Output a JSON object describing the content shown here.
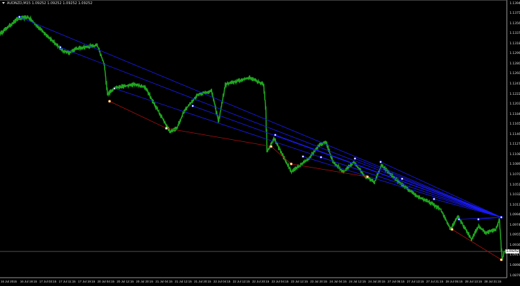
{
  "window": {
    "symbol": "AUDNZD,M15",
    "ohlc": [
      "1.09252",
      "1.09252",
      "1.09252",
      "1.09252"
    ]
  },
  "colors": {
    "background": "#000000",
    "price_line": "#1fa51f",
    "trend_upper": "#1a1aff",
    "trend_lower": "#b01010",
    "axis": "#c8c8c8",
    "current_price_line": "#808080"
  },
  "chart_data": {
    "type": "line",
    "title": "AUDNZD,M15",
    "ylim": [
      1.08795,
      1.1394
    ],
    "current_price": "1.09252",
    "y_ticks": [
      "1.13940",
      "1.13750",
      "1.13560",
      "1.13370",
      "1.13180",
      "1.12990",
      "1.12800",
      "1.12605",
      "1.12415",
      "1.12225",
      "1.12035",
      "1.11845",
      "1.11655",
      "1.11465",
      "1.11275",
      "1.11080",
      "1.10890",
      "1.10700",
      "1.10510",
      "1.10320",
      "1.10130",
      "1.09940",
      "1.09745",
      "1.09555",
      "1.09365",
      "1.09175",
      "1.08985",
      "1.08795"
    ],
    "x_ticks": [
      "16 Jul 2015",
      "16 Jul 19:15",
      "17 Jul 03:15",
      "17 Jul 11:15",
      "17 Jul 19:15",
      "20 Jul 04:15",
      "20 Jul 12:15",
      "20 Jul 20:15",
      "21 Jul 04:15",
      "21 Jul 12:15",
      "21 Jul 20:15",
      "22 Jul 04:15",
      "22 Jul 12:15",
      "22 Jul 20:15",
      "23 Jul 04:15",
      "23 Jul 12:15",
      "23 Jul 20:15",
      "24 Jul 04:15",
      "24 Jul 12:15",
      "24 Jul 20:15",
      "27 Jul 05:15",
      "27 Jul 13:15",
      "27 Jul 21:15",
      "28 Jul 05:15",
      "28 Jul 13:15",
      "28 Jul 21:15"
    ],
    "bars": 728,
    "close_keypoints": [
      [
        0,
        1.13366
      ],
      [
        25,
        1.13647
      ],
      [
        40,
        1.13685
      ],
      [
        60,
        1.1343
      ],
      [
        90,
        1.13048
      ],
      [
        100,
        1.13009
      ],
      [
        110,
        1.13086
      ],
      [
        140,
        1.1315
      ],
      [
        150,
        1.12793
      ],
      [
        155,
        1.12219
      ],
      [
        165,
        1.12346
      ],
      [
        195,
        1.1241
      ],
      [
        210,
        1.12346
      ],
      [
        220,
        1.12091
      ],
      [
        245,
        1.11518
      ],
      [
        255,
        1.11581
      ],
      [
        265,
        1.119
      ],
      [
        285,
        1.12219
      ],
      [
        305,
        1.12283
      ],
      [
        315,
        1.11709
      ],
      [
        325,
        1.1241
      ],
      [
        360,
        1.12538
      ],
      [
        380,
        1.1241
      ],
      [
        383,
        1.11964
      ],
      [
        385,
        1.11135
      ],
      [
        395,
        1.1139
      ],
      [
        420,
        1.10753
      ],
      [
        445,
        1.11008
      ],
      [
        460,
        1.11262
      ],
      [
        470,
        1.11326
      ],
      [
        480,
        1.10944
      ],
      [
        495,
        1.10753
      ],
      [
        510,
        1.10944
      ],
      [
        525,
        1.10689
      ],
      [
        540,
        1.10561
      ],
      [
        550,
        1.1088
      ],
      [
        575,
        1.10561
      ],
      [
        600,
        1.10306
      ],
      [
        620,
        1.10178
      ],
      [
        635,
        1.10051
      ],
      [
        650,
        1.09669
      ],
      [
        660,
        1.09924
      ],
      [
        680,
        1.09478
      ],
      [
        690,
        1.09733
      ],
      [
        700,
        1.09605
      ],
      [
        715,
        1.09669
      ],
      [
        720,
        1.0986
      ],
      [
        724,
        1.09095
      ],
      [
        727,
        1.09252
      ]
    ],
    "upper_trendlines": {
      "end": [
        723,
        1.09898
      ],
      "starts": [
        [
          28,
          1.13685
        ],
        [
          87,
          1.13111
        ],
        [
          165,
          1.12333
        ],
        [
          278,
          1.12002
        ],
        [
          397,
          1.11454
        ],
        [
          437,
          1.11046
        ],
        [
          463,
          1.11033
        ],
        [
          512,
          1.11008
        ],
        [
          549,
          1.10944
        ],
        [
          580,
          1.10625
        ],
        [
          626,
          1.10243
        ],
        [
          662,
          1.0986
        ],
        [
          690,
          1.0986
        ]
      ]
    },
    "lower_trendlines": [
      [
        [
          158,
          1.12091
        ],
        [
          240,
          1.11581
        ],
        [
          391,
          1.11237
        ],
        [
          420,
          1.10906
        ],
        [
          530,
          1.10663
        ]
      ],
      [
        [
          652,
          1.09669
        ],
        [
          723,
          1.09095
        ]
      ]
    ]
  }
}
